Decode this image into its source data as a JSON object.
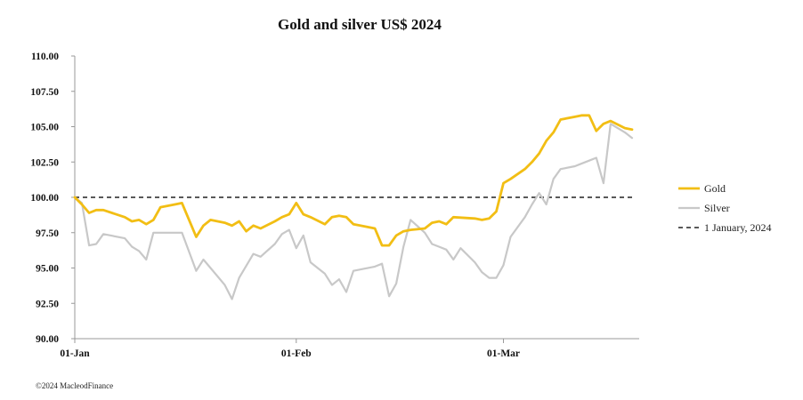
{
  "chart_data": {
    "type": "line",
    "title": "Gold and silver  US$ 2024",
    "xlabel": "",
    "ylabel": "",
    "ylim": [
      90,
      110
    ],
    "yticks": [
      90,
      92.5,
      95,
      97.5,
      100,
      102.5,
      105,
      107.5,
      110
    ],
    "ytick_labels": [
      "90.00",
      "92.50",
      "95.00",
      "97.50",
      "100.00",
      "102.50",
      "105.00",
      "107.50",
      "110.00"
    ],
    "x_domain": [
      "2024-01-01",
      "2024-03-20"
    ],
    "xticks": [
      {
        "date": "2024-01-01",
        "label": "01-Jan"
      },
      {
        "date": "2024-02-01",
        "label": "01-Feb"
      },
      {
        "date": "2024-03-01",
        "label": "01-Mar"
      }
    ],
    "grid": false,
    "legend_position": "right",
    "series": [
      {
        "name": "Gold",
        "color": "#F2BE14",
        "style": "solid",
        "points": [
          [
            "2024-01-01",
            100.0
          ],
          [
            "2024-01-02",
            99.5
          ],
          [
            "2024-01-03",
            98.9
          ],
          [
            "2024-01-04",
            99.1
          ],
          [
            "2024-01-05",
            99.1
          ],
          [
            "2024-01-08",
            98.6
          ],
          [
            "2024-01-09",
            98.3
          ],
          [
            "2024-01-10",
            98.4
          ],
          [
            "2024-01-11",
            98.1
          ],
          [
            "2024-01-12",
            98.4
          ],
          [
            "2024-01-13",
            99.3
          ],
          [
            "2024-01-15",
            99.5
          ],
          [
            "2024-01-16",
            99.6
          ],
          [
            "2024-01-18",
            97.2
          ],
          [
            "2024-01-19",
            98.0
          ],
          [
            "2024-01-20",
            98.4
          ],
          [
            "2024-01-22",
            98.2
          ],
          [
            "2024-01-23",
            98.0
          ],
          [
            "2024-01-24",
            98.3
          ],
          [
            "2024-01-25",
            97.6
          ],
          [
            "2024-01-26",
            98.0
          ],
          [
            "2024-01-27",
            97.8
          ],
          [
            "2024-01-29",
            98.3
          ],
          [
            "2024-01-30",
            98.6
          ],
          [
            "2024-01-31",
            98.8
          ],
          [
            "2024-02-01",
            99.6
          ],
          [
            "2024-02-02",
            98.8
          ],
          [
            "2024-02-03",
            98.6
          ],
          [
            "2024-02-05",
            98.1
          ],
          [
            "2024-02-06",
            98.6
          ],
          [
            "2024-02-07",
            98.7
          ],
          [
            "2024-02-08",
            98.6
          ],
          [
            "2024-02-09",
            98.1
          ],
          [
            "2024-02-11",
            97.9
          ],
          [
            "2024-02-12",
            97.8
          ],
          [
            "2024-02-13",
            96.6
          ],
          [
            "2024-02-14",
            96.6
          ],
          [
            "2024-02-15",
            97.3
          ],
          [
            "2024-02-16",
            97.6
          ],
          [
            "2024-02-17",
            97.7
          ],
          [
            "2024-02-19",
            97.8
          ],
          [
            "2024-02-20",
            98.2
          ],
          [
            "2024-02-21",
            98.3
          ],
          [
            "2024-02-22",
            98.1
          ],
          [
            "2024-02-23",
            98.6
          ],
          [
            "2024-02-26",
            98.5
          ],
          [
            "2024-02-27",
            98.4
          ],
          [
            "2024-02-28",
            98.5
          ],
          [
            "2024-02-29",
            99.0
          ],
          [
            "2024-03-01",
            101.0
          ],
          [
            "2024-03-02",
            101.3
          ],
          [
            "2024-03-04",
            102.0
          ],
          [
            "2024-03-05",
            102.5
          ],
          [
            "2024-03-06",
            103.1
          ],
          [
            "2024-03-07",
            104.0
          ],
          [
            "2024-03-08",
            104.6
          ],
          [
            "2024-03-09",
            105.5
          ],
          [
            "2024-03-11",
            105.7
          ],
          [
            "2024-03-12",
            105.8
          ],
          [
            "2024-03-13",
            105.8
          ],
          [
            "2024-03-14",
            104.7
          ],
          [
            "2024-03-15",
            105.2
          ],
          [
            "2024-03-16",
            105.4
          ],
          [
            "2024-03-18",
            104.9
          ],
          [
            "2024-03-19",
            104.8
          ]
        ]
      },
      {
        "name": "Silver",
        "color": "#C8C8C8",
        "style": "solid",
        "points": [
          [
            "2024-01-01",
            100.0
          ],
          [
            "2024-01-02",
            99.6
          ],
          [
            "2024-01-03",
            96.6
          ],
          [
            "2024-01-04",
            96.7
          ],
          [
            "2024-01-05",
            97.4
          ],
          [
            "2024-01-08",
            97.1
          ],
          [
            "2024-01-09",
            96.5
          ],
          [
            "2024-01-10",
            96.2
          ],
          [
            "2024-01-11",
            95.6
          ],
          [
            "2024-01-12",
            97.5
          ],
          [
            "2024-01-15",
            97.5
          ],
          [
            "2024-01-16",
            97.5
          ],
          [
            "2024-01-18",
            94.8
          ],
          [
            "2024-01-19",
            95.6
          ],
          [
            "2024-01-20",
            95.0
          ],
          [
            "2024-01-22",
            93.8
          ],
          [
            "2024-01-23",
            92.8
          ],
          [
            "2024-01-24",
            94.3
          ],
          [
            "2024-01-26",
            96.0
          ],
          [
            "2024-01-27",
            95.8
          ],
          [
            "2024-01-29",
            96.7
          ],
          [
            "2024-01-30",
            97.4
          ],
          [
            "2024-01-31",
            97.7
          ],
          [
            "2024-02-01",
            96.4
          ],
          [
            "2024-02-02",
            97.3
          ],
          [
            "2024-02-03",
            95.4
          ],
          [
            "2024-02-05",
            94.6
          ],
          [
            "2024-02-06",
            93.8
          ],
          [
            "2024-02-07",
            94.2
          ],
          [
            "2024-02-08",
            93.3
          ],
          [
            "2024-02-09",
            94.8
          ],
          [
            "2024-02-12",
            95.1
          ],
          [
            "2024-02-13",
            95.3
          ],
          [
            "2024-02-14",
            93.0
          ],
          [
            "2024-02-15",
            93.9
          ],
          [
            "2024-02-16",
            96.5
          ],
          [
            "2024-02-17",
            98.4
          ],
          [
            "2024-02-19",
            97.5
          ],
          [
            "2024-02-20",
            96.7
          ],
          [
            "2024-02-21",
            96.5
          ],
          [
            "2024-02-22",
            96.3
          ],
          [
            "2024-02-23",
            95.6
          ],
          [
            "2024-02-24",
            96.4
          ],
          [
            "2024-02-26",
            95.4
          ],
          [
            "2024-02-27",
            94.7
          ],
          [
            "2024-02-28",
            94.3
          ],
          [
            "2024-02-29",
            94.3
          ],
          [
            "2024-03-01",
            95.2
          ],
          [
            "2024-03-02",
            97.2
          ],
          [
            "2024-03-04",
            98.6
          ],
          [
            "2024-03-05",
            99.5
          ],
          [
            "2024-03-06",
            100.3
          ],
          [
            "2024-03-07",
            99.5
          ],
          [
            "2024-03-08",
            101.3
          ],
          [
            "2024-03-09",
            102.0
          ],
          [
            "2024-03-11",
            102.2
          ],
          [
            "2024-03-12",
            102.4
          ],
          [
            "2024-03-13",
            102.6
          ],
          [
            "2024-03-14",
            102.8
          ],
          [
            "2024-03-15",
            101.0
          ],
          [
            "2024-03-16",
            105.2
          ],
          [
            "2024-03-18",
            104.6
          ],
          [
            "2024-03-19",
            104.2
          ]
        ]
      },
      {
        "name": "1 January, 2024",
        "color": "#222222",
        "style": "dashed",
        "points": [
          [
            "2024-01-01",
            100.0
          ],
          [
            "2024-03-19",
            100.0
          ]
        ]
      }
    ]
  },
  "footer": {
    "copyright": "©2024 MacleodFinance"
  }
}
